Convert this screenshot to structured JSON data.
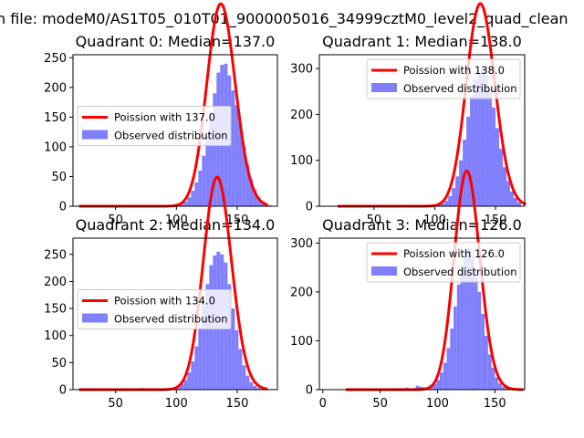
{
  "figure_title": "n file: modeM0/AS1T05_010T01_9000005016_34999cztM0_level2_quad_clean",
  "colors": {
    "fit_line": "#ff0000",
    "observed_bar": "#8080ff",
    "axis": "#000000",
    "background": "#ffffff"
  },
  "chart_data": [
    {
      "type": "bar",
      "title": "Quadrant 0: Median=137.0",
      "median": 137.0,
      "xlim": [
        15,
        183
      ],
      "ylim": [
        0,
        255
      ],
      "xticks": [
        50,
        100,
        150
      ],
      "yticks": [
        0,
        50,
        100,
        150,
        200,
        250
      ],
      "legend": {
        "placement": "center-left",
        "fit_label": "Poission with 137.0",
        "observed_label": "Observed distribution"
      },
      "fit_mean": 137.0,
      "fit_scale": 1.0,
      "histogram": {
        "bin_width": 3,
        "bins": [
          [
            61,
            2
          ],
          [
            73,
            2
          ],
          [
            94,
            1
          ],
          [
            97,
            2
          ],
          [
            100,
            3
          ],
          [
            103,
            5
          ],
          [
            106,
            8
          ],
          [
            109,
            15
          ],
          [
            112,
            26
          ],
          [
            115,
            40
          ],
          [
            118,
            60
          ],
          [
            121,
            85
          ],
          [
            124,
            118
          ],
          [
            127,
            155
          ],
          [
            130,
            190
          ],
          [
            133,
            225
          ],
          [
            136,
            238
          ],
          [
            139,
            240
          ],
          [
            142,
            220
          ],
          [
            145,
            195
          ],
          [
            148,
            170
          ],
          [
            151,
            140
          ],
          [
            154,
            100
          ],
          [
            157,
            70
          ],
          [
            160,
            45
          ],
          [
            163,
            28
          ],
          [
            166,
            15
          ],
          [
            169,
            8
          ],
          [
            172,
            4
          ],
          [
            175,
            2
          ]
        ]
      }
    },
    {
      "type": "bar",
      "title": "Quadrant 1: Median=138.0",
      "median": 138.0,
      "xlim": [
        5,
        174
      ],
      "ylim": [
        0,
        330
      ],
      "xticks": [
        50,
        100,
        150
      ],
      "yticks": [
        0,
        100,
        200,
        300
      ],
      "legend": {
        "placement": "upper-right",
        "fit_label": "Poission with 138.0",
        "observed_label": "Observed distribution"
      },
      "fit_mean": 138.0,
      "fit_scale": 1.3,
      "histogram": {
        "bin_width": 3,
        "bins": [
          [
            55,
            2
          ],
          [
            82,
            3
          ],
          [
            99,
            2
          ],
          [
            102,
            4
          ],
          [
            105,
            6
          ],
          [
            108,
            12
          ],
          [
            111,
            22
          ],
          [
            114,
            40
          ],
          [
            117,
            65
          ],
          [
            120,
            100
          ],
          [
            123,
            145
          ],
          [
            126,
            195
          ],
          [
            129,
            240
          ],
          [
            132,
            275
          ],
          [
            135,
            290
          ],
          [
            138,
            300
          ],
          [
            141,
            285
          ],
          [
            144,
            255
          ],
          [
            147,
            215
          ],
          [
            150,
            170
          ],
          [
            153,
            125
          ],
          [
            156,
            85
          ],
          [
            159,
            55
          ],
          [
            162,
            32
          ],
          [
            165,
            18
          ],
          [
            168,
            9
          ]
        ]
      }
    },
    {
      "type": "bar",
      "title": "Quadrant 2: Median=134.0",
      "median": 134.0,
      "xlim": [
        15,
        183
      ],
      "ylim": [
        0,
        280
      ],
      "xticks": [
        50,
        100,
        150
      ],
      "yticks": [
        0,
        50,
        100,
        150,
        200,
        250
      ],
      "legend": {
        "placement": "center-left",
        "fit_label": "Poission with 134.0",
        "observed_label": "Observed distribution"
      },
      "fit_mean": 134.0,
      "fit_scale": 1.14,
      "histogram": {
        "bin_width": 3,
        "bins": [
          [
            70,
            3
          ],
          [
            91,
            2
          ],
          [
            97,
            3
          ],
          [
            100,
            5
          ],
          [
            103,
            10
          ],
          [
            106,
            18
          ],
          [
            109,
            32
          ],
          [
            112,
            52
          ],
          [
            115,
            80
          ],
          [
            118,
            115
          ],
          [
            121,
            155
          ],
          [
            124,
            195
          ],
          [
            127,
            230
          ],
          [
            130,
            248
          ],
          [
            133,
            255
          ],
          [
            136,
            250
          ],
          [
            139,
            235
          ],
          [
            142,
            195
          ],
          [
            145,
            150
          ],
          [
            148,
            110
          ],
          [
            151,
            75
          ],
          [
            154,
            45
          ],
          [
            157,
            26
          ],
          [
            160,
            14
          ],
          [
            163,
            7
          ],
          [
            166,
            3
          ]
        ]
      }
    },
    {
      "type": "bar",
      "title": "Quadrant 3: Median=126.0",
      "median": 126.0,
      "xlim": [
        -3,
        176
      ],
      "ylim": [
        0,
        310
      ],
      "xticks": [
        0,
        50,
        100,
        150
      ],
      "yticks": [
        0,
        100,
        200,
        300
      ],
      "legend": {
        "placement": "upper-right",
        "fit_label": "Poission with 126.0",
        "observed_label": "Observed distribution"
      },
      "fit_mean": 126.0,
      "fit_scale": 1.26,
      "histogram": {
        "bin_width": 3,
        "bins": [
          [
            63,
            3
          ],
          [
            72,
            4
          ],
          [
            78,
            3
          ],
          [
            81,
            8
          ],
          [
            84,
            6
          ],
          [
            87,
            5
          ],
          [
            90,
            4
          ],
          [
            93,
            8
          ],
          [
            96,
            12
          ],
          [
            99,
            20
          ],
          [
            102,
            35
          ],
          [
            105,
            55
          ],
          [
            108,
            85
          ],
          [
            111,
            125
          ],
          [
            114,
            170
          ],
          [
            117,
            215
          ],
          [
            120,
            255
          ],
          [
            123,
            280
          ],
          [
            126,
            290
          ],
          [
            129,
            275
          ],
          [
            132,
            245
          ],
          [
            135,
            200
          ],
          [
            138,
            155
          ],
          [
            141,
            110
          ],
          [
            144,
            72
          ],
          [
            147,
            45
          ],
          [
            150,
            25
          ],
          [
            153,
            13
          ],
          [
            156,
            6
          ],
          [
            159,
            3
          ]
        ]
      }
    }
  ]
}
